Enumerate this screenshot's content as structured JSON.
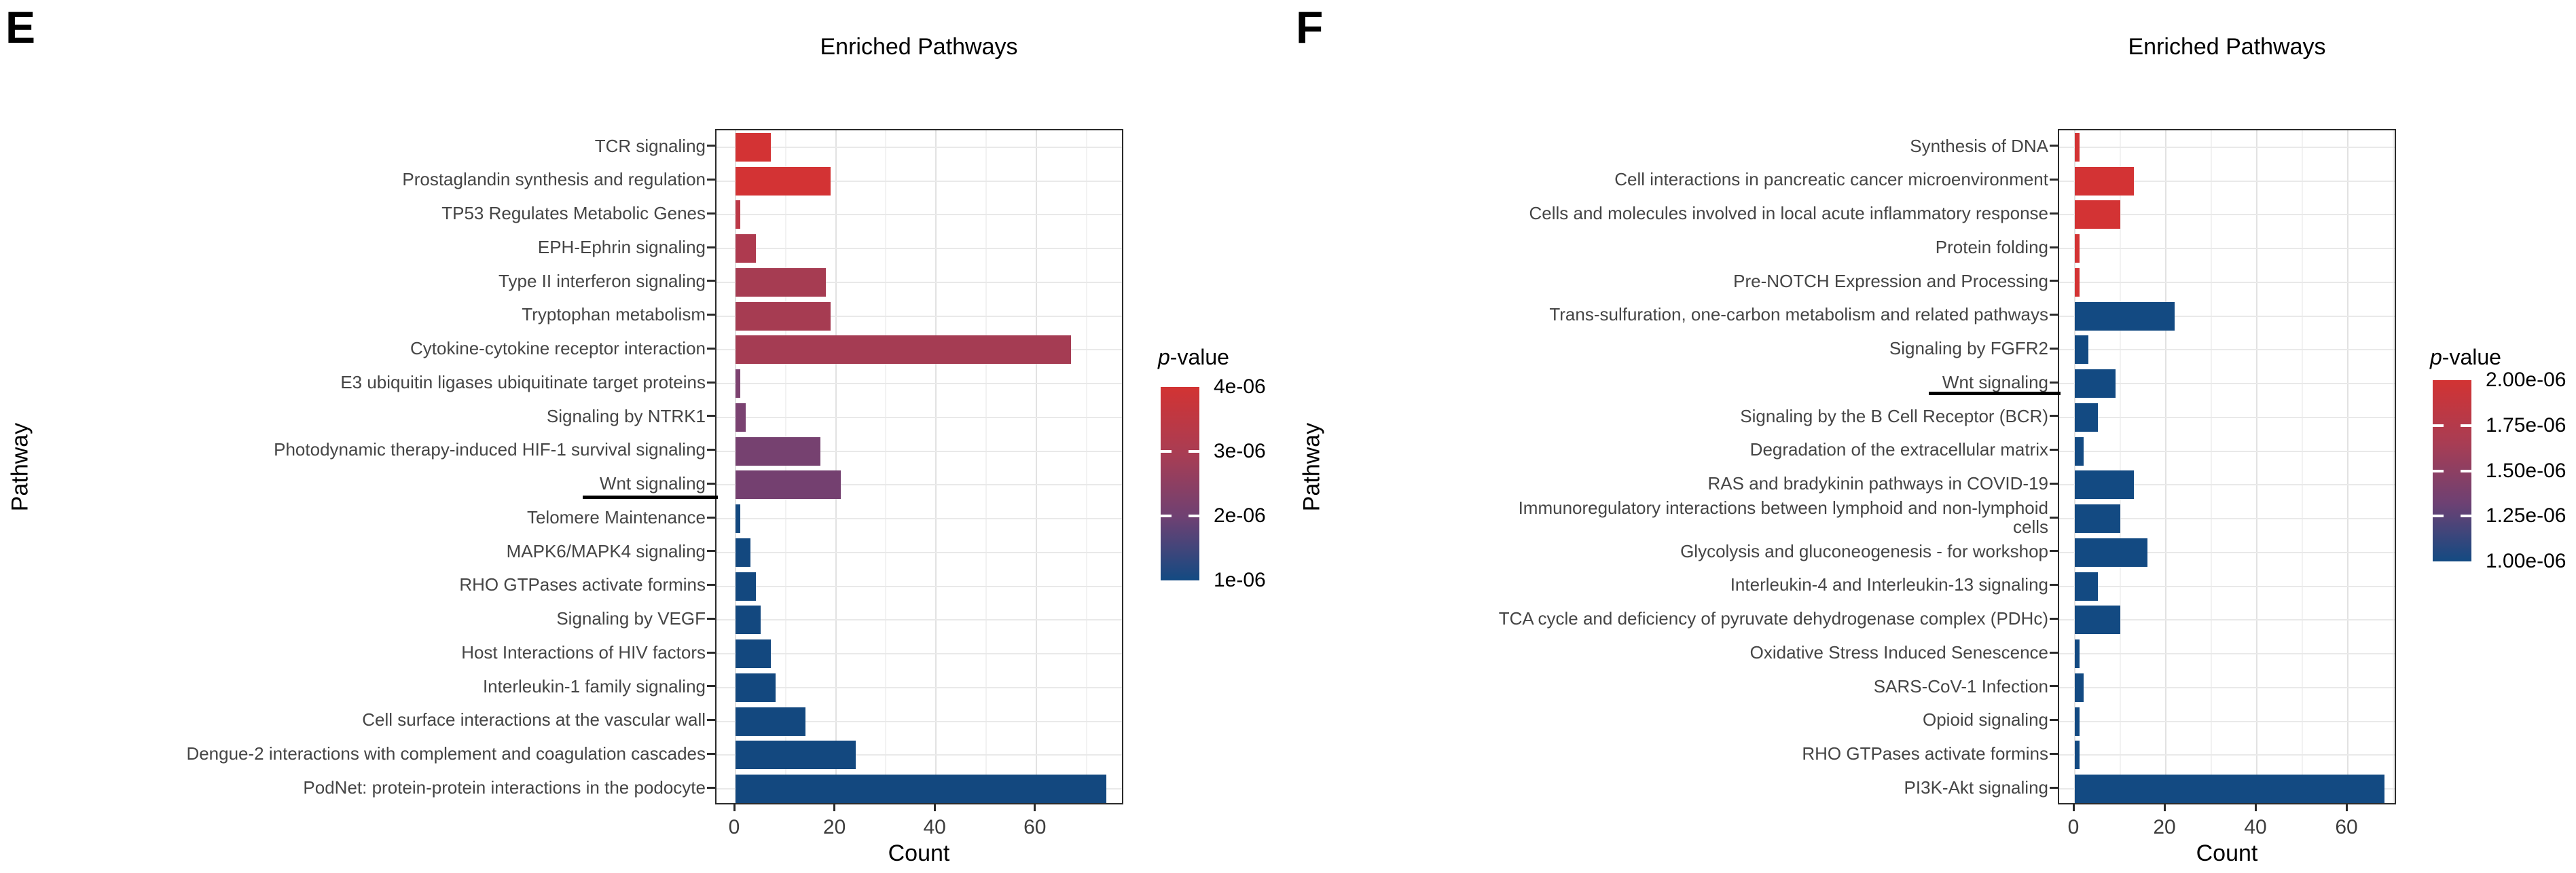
{
  "chart_data": [
    {
      "type": "bar",
      "orientation": "horizontal",
      "panel_letter": "E",
      "title": "Enriched Pathways",
      "xlabel": "Count",
      "ylabel": "Pathway",
      "x_ticks": [
        0,
        20,
        40,
        60
      ],
      "x_tick_labels": [
        "0",
        "20",
        "40",
        "60"
      ],
      "xlim": [
        0,
        77
      ],
      "grid": true,
      "categories": [
        "TCR signaling",
        "Prostaglandin synthesis and regulation",
        "TP53 Regulates Metabolic Genes",
        "EPH-Ephrin signaling",
        "Type II interferon signaling",
        "Tryptophan metabolism",
        "Cytokine-cytokine receptor interaction",
        "E3 ubiquitin ligases ubiquitinate target proteins",
        "Signaling by NTRK1",
        "Photodynamic therapy-induced HIF-1 survival signaling",
        "Wnt signaling",
        "Telomere Maintenance",
        "MAPK6/MAPK4 signaling",
        "RHO GTPases activate formins",
        "Signaling by VEGF",
        "Host Interactions of HIV factors",
        "Interleukin-1 family signaling",
        "Cell surface interactions at the vascular wall",
        "Dengue-2 interactions with complement and coagulation cascades",
        "PodNet: protein-protein interactions in the podocyte"
      ],
      "values": [
        7,
        19,
        1,
        4,
        18,
        19,
        67,
        1,
        2,
        17,
        21,
        1,
        3,
        4,
        5,
        7,
        8,
        14,
        24,
        74
      ],
      "bar_colors": [
        "#d33334",
        "#d33334",
        "#bc3847",
        "#ae3a4f",
        "#a63c52",
        "#a63c52",
        "#a53c53",
        "#7d4270",
        "#7a4271",
        "#764170",
        "#744070",
        "#13487f",
        "#13487f",
        "#13487f",
        "#13487f",
        "#13487f",
        "#13487f",
        "#13487f",
        "#13487f",
        "#13487f"
      ],
      "legend": {
        "title": "p-value",
        "title_italic_part": "p",
        "title_regular_part": "-value",
        "tick_labels": [
          "4e-06",
          "3e-06",
          "2e-06",
          "1e-06"
        ],
        "gradient_stops": [
          "#d23333",
          "#a83d54",
          "#6d4173",
          "#134a82"
        ],
        "position": "right"
      },
      "annotation": {
        "underlined_category": "Wnt signaling"
      }
    },
    {
      "type": "bar",
      "orientation": "horizontal",
      "panel_letter": "F",
      "title": "Enriched Pathways",
      "xlabel": "Count",
      "ylabel": "Pathway",
      "x_ticks": [
        0,
        20,
        40,
        60
      ],
      "x_tick_labels": [
        "0",
        "20",
        "40",
        "60"
      ],
      "xlim": [
        0,
        71
      ],
      "grid": true,
      "categories": [
        "Synthesis of DNA",
        "Cell interactions in pancreatic cancer microenvironment",
        "Cells and molecules involved in local acute inflammatory response",
        "Protein folding",
        "Pre-NOTCH Expression and Processing",
        "Trans-sulfuration, one-carbon metabolism and related pathways",
        "Signaling by FGFR2",
        "Wnt signaling",
        "Signaling by the B Cell Receptor (BCR)",
        "Degradation of the extracellular matrix",
        "RAS and bradykinin pathways in COVID-19",
        "Immunoregulatory interactions between lymphoid and non-lymphoid\ncells",
        "Glycolysis and gluconeogenesis - for workshop",
        "Interleukin-4 and Interleukin-13 signaling",
        "TCA cycle and deficiency of pyruvate dehydrogenase complex (PDHc)",
        "Oxidative Stress Induced Senescence",
        "SARS-CoV-1 Infection",
        "Opioid signaling",
        "RHO GTPases activate formins",
        "PI3K-Akt signaling"
      ],
      "values": [
        1,
        13,
        10,
        1,
        1,
        22,
        3,
        9,
        5,
        2,
        13,
        10,
        16,
        5,
        10,
        1,
        2,
        1,
        1,
        68
      ],
      "bar_colors": [
        "#d33334",
        "#d33334",
        "#d33334",
        "#d33334",
        "#d33334",
        "#134a82",
        "#134a82",
        "#134a82",
        "#134a82",
        "#134a82",
        "#134a82",
        "#134a82",
        "#134a82",
        "#134a82",
        "#134a82",
        "#134a82",
        "#134a82",
        "#134a82",
        "#134a82",
        "#134a82"
      ],
      "legend": {
        "title": "p-value",
        "title_italic_part": "p",
        "title_regular_part": "-value",
        "tick_labels": [
          "2.00e-06",
          "1.75e-06",
          "1.50e-06",
          "1.25e-06",
          "1.00e-06"
        ],
        "gradient_stops": [
          "#d23333",
          "#a83d54",
          "#6d4173",
          "#134a82"
        ],
        "position": "right"
      },
      "annotation": {
        "underlined_category": "Wnt signaling"
      }
    }
  ]
}
